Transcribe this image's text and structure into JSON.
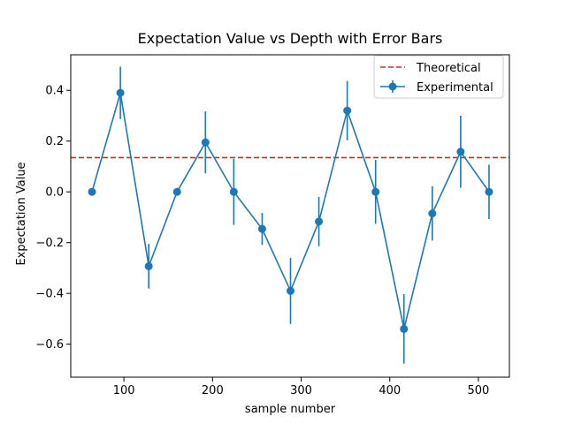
{
  "chart_data": {
    "type": "line",
    "title": "Expectation Value vs Depth with Error Bars",
    "xlabel": "sample number",
    "ylabel": "Expectation Value",
    "xlim": [
      40,
      535
    ],
    "ylim": [
      -0.73,
      0.54
    ],
    "xticks": [
      100,
      200,
      300,
      400,
      500
    ],
    "yticks": [
      -0.6,
      -0.4,
      -0.2,
      0.0,
      0.2,
      0.4
    ],
    "ytick_labels": [
      "−0.6",
      "−0.4",
      "−0.2",
      "0.0",
      "0.2",
      "0.4"
    ],
    "grid": false,
    "legend": {
      "placement": "top-right",
      "entries": [
        "Theoretical",
        "Experimental"
      ]
    },
    "theoretical": {
      "name": "Theoretical",
      "value": 0.135,
      "color": "#d62728",
      "style": "dashed"
    },
    "series": [
      {
        "name": "Experimental",
        "color": "#1f77b4",
        "x": [
          64,
          96,
          128,
          160,
          192,
          224,
          256,
          288,
          320,
          352,
          384,
          416,
          448,
          480,
          512
        ],
        "y": [
          0.0,
          0.39,
          -0.293,
          0.0,
          0.195,
          0.0,
          -0.146,
          -0.39,
          -0.117,
          0.32,
          0.0,
          -0.54,
          -0.085,
          0.158,
          0.0
        ],
        "err": [
          0.0,
          0.103,
          0.088,
          0.0,
          0.122,
          0.13,
          0.063,
          0.13,
          0.097,
          0.117,
          0.126,
          0.137,
          0.107,
          0.142,
          0.107
        ]
      }
    ]
  }
}
